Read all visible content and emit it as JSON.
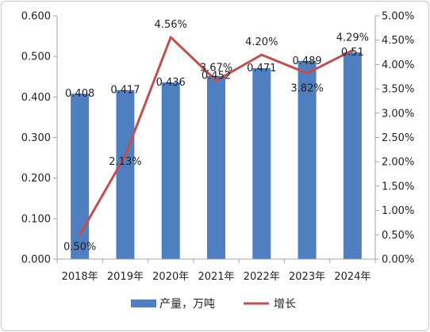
{
  "chart_data": {
    "type": "bar",
    "categories": [
      "2018年",
      "2019年",
      "2020年",
      "2021年",
      "2022年",
      "2023年",
      "2024年"
    ],
    "series": [
      {
        "name": "产量，万吨",
        "type": "bar",
        "axis": "left",
        "values": [
          0.408,
          0.417,
          0.436,
          0.452,
          0.471,
          0.489,
          0.51
        ],
        "labels": [
          "0.408",
          "0.417",
          "0.436",
          "0.452",
          "0.471",
          "0.489",
          "0.51"
        ]
      },
      {
        "name": "增长",
        "type": "line",
        "axis": "right",
        "values": [
          0.5,
          2.13,
          4.56,
          3.67,
          4.2,
          3.82,
          4.29
        ],
        "labels": [
          "0.50%",
          "2.13%",
          "4.56%",
          "3.67%",
          "4.20%",
          "3.82%",
          "4.29%"
        ]
      }
    ],
    "y_left": {
      "ylim": [
        0,
        0.6
      ],
      "ticks": [
        "0.000",
        "0.100",
        "0.200",
        "0.300",
        "0.400",
        "0.500",
        "0.600"
      ]
    },
    "y_right": {
      "ylim": [
        0,
        5
      ],
      "ticks": [
        "0.00%",
        "0.50%",
        "1.00%",
        "1.50%",
        "2.00%",
        "2.50%",
        "3.00%",
        "3.50%",
        "4.00%",
        "4.50%",
        "5.00%"
      ]
    },
    "legend_position": "bottom",
    "grid": false,
    "colors": {
      "bar": "#4f7fc0",
      "line": "#c0504d",
      "axis": "#a6a6a6"
    }
  }
}
